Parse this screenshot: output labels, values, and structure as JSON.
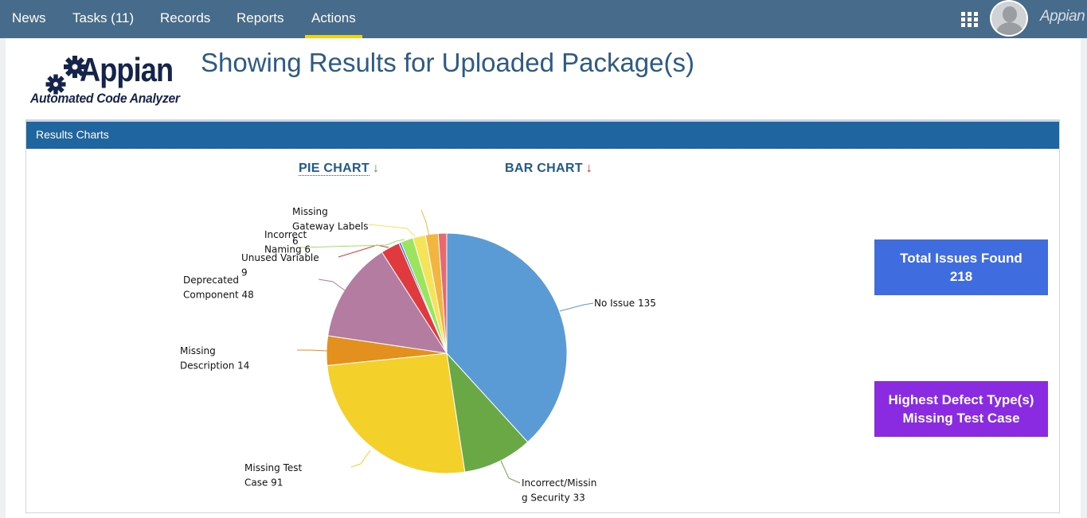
{
  "nav": {
    "items": [
      {
        "label": "News",
        "active": false
      },
      {
        "label": "Tasks (11)",
        "active": false
      },
      {
        "label": "Records",
        "active": false
      },
      {
        "label": "Reports",
        "active": false
      },
      {
        "label": "Actions",
        "active": true
      }
    ],
    "brand": "Appian",
    "apps_icon": "grid-icon",
    "avatar_icon": "user-avatar-icon"
  },
  "logo": {
    "word": "Appian",
    "tagline": "Automated Code Analyzer",
    "icon": "gears-icon"
  },
  "page_title": "Showing Results for Uploaded Package(s)",
  "panel": {
    "title": "Results Charts",
    "tabs": [
      {
        "label": "PIE CHART",
        "arrow": "↓",
        "arrow_color": "#3aa33a",
        "selected": true
      },
      {
        "label": "BAR CHART",
        "arrow": "↓",
        "arrow_color": "#d22032",
        "selected": false
      }
    ]
  },
  "kpis": {
    "total_label": "Total Issues Found",
    "total_value": "218",
    "highest_label": "Highest Defect Type(s)",
    "highest_value": "Missing Test Case"
  },
  "chart_data": {
    "type": "pie",
    "slices": [
      {
        "name": "No Issue",
        "value": 135,
        "color": "#5b9bd5",
        "label_lines": [
          "No Issue 135"
        ]
      },
      {
        "name": "Incorrect/Missing Security",
        "value": 33,
        "color": "#6aa846",
        "label_lines": [
          "Incorrect/Missin",
          "g Security 33"
        ]
      },
      {
        "name": "Missing Test Case",
        "value": 91,
        "color": "#f4d02a",
        "label_lines": [
          "Missing Test",
          "Case 91"
        ]
      },
      {
        "name": "Missing Description",
        "value": 14,
        "color": "#e3901f",
        "label_lines": [
          "Missing",
          "Description 14"
        ]
      },
      {
        "name": "Deprecated Component",
        "value": 48,
        "color": "#b57ca1",
        "label_lines": [
          "Deprecated",
          "Component 48"
        ]
      },
      {
        "name": "Unused Variable",
        "value": 9,
        "color": "#e03a3e",
        "label_lines": [
          "Unused Variable",
          "9"
        ]
      },
      {
        "name": "Unknown (blue sliver)",
        "value": 1,
        "color": "#3f6de0",
        "label_lines": []
      },
      {
        "name": "Incorrect Naming",
        "value": 6,
        "color": "#9be45d",
        "label_lines": [
          "Incorrect",
          "Naming 6"
        ]
      },
      {
        "name": "Missing Gateway Labels",
        "value": 6,
        "color": "#f5e35a",
        "label_lines": [
          "Missing",
          "Gateway Labels",
          "6"
        ]
      },
      {
        "name": "Unlabeled (orange)",
        "value": 6,
        "color": "#f3b541",
        "label_lines": []
      },
      {
        "name": "Unlabeled (red)",
        "value": 4,
        "color": "#e86a6e",
        "label_lines": []
      }
    ]
  }
}
